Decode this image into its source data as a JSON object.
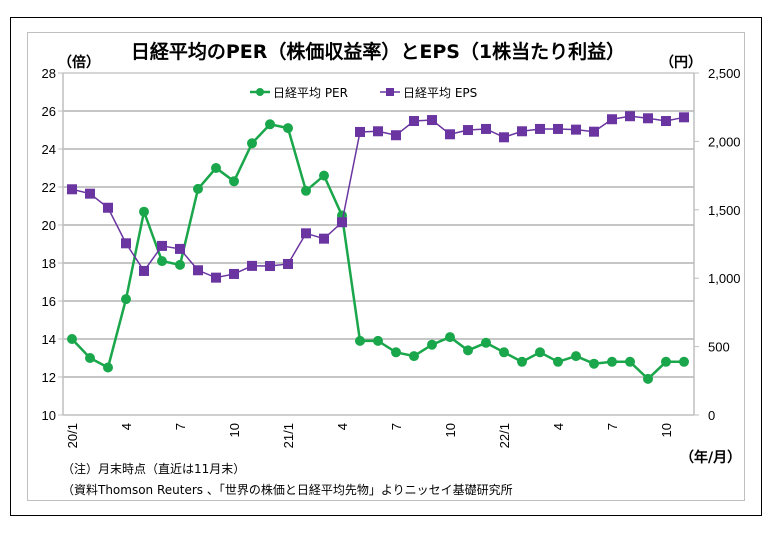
{
  "chart_data": {
    "type": "line",
    "title": "日経平均のPER（株価収益率）とEPS（1株当たり利益）",
    "left_unit": "（倍）",
    "right_unit": "（円）",
    "x_unit": "（年/月）",
    "x": [
      "20/1",
      "20/2",
      "20/3",
      "20/4",
      "20/5",
      "20/6",
      "20/7",
      "20/8",
      "20/9",
      "20/10",
      "20/11",
      "20/12",
      "21/1",
      "21/2",
      "21/3",
      "21/4",
      "21/5",
      "21/6",
      "21/7",
      "21/8",
      "21/9",
      "21/10",
      "21/11",
      "21/12",
      "22/1",
      "22/2",
      "22/3",
      "22/4",
      "22/5",
      "22/6",
      "22/7",
      "22/8",
      "22/9",
      "22/10",
      "22/11"
    ],
    "x_tick_labels": [
      {
        "index": 0,
        "label": "20/1"
      },
      {
        "index": 3,
        "label": "4"
      },
      {
        "index": 6,
        "label": "7"
      },
      {
        "index": 9,
        "label": "10"
      },
      {
        "index": 12,
        "label": "21/1"
      },
      {
        "index": 15,
        "label": "4"
      },
      {
        "index": 18,
        "label": "7"
      },
      {
        "index": 21,
        "label": "10"
      },
      {
        "index": 24,
        "label": "22/1"
      },
      {
        "index": 27,
        "label": "4"
      },
      {
        "index": 30,
        "label": "7"
      },
      {
        "index": 33,
        "label": "10"
      }
    ],
    "y_left": {
      "min": 10,
      "max": 28,
      "step": 2,
      "ticks": [
        "28",
        "26",
        "24",
        "22",
        "20",
        "18",
        "16",
        "14",
        "12",
        "10"
      ]
    },
    "y_right": {
      "min": 0,
      "max": 2500,
      "step": 500,
      "ticks": [
        "2,500",
        "2,000",
        "1,500",
        "1,000",
        "500",
        "0"
      ]
    },
    "grid": true,
    "legend_position": "top-center",
    "series": [
      {
        "name": "日経平均 PER",
        "axis": "left",
        "marker": "circle",
        "color": "#1aa64a",
        "values": [
          14.0,
          13.0,
          12.5,
          16.1,
          20.7,
          18.1,
          17.9,
          21.9,
          23.0,
          22.3,
          24.3,
          25.3,
          25.1,
          21.8,
          22.6,
          20.5,
          13.9,
          13.9,
          13.3,
          13.1,
          13.7,
          14.1,
          13.4,
          13.8,
          13.3,
          12.8,
          13.3,
          12.8,
          13.1,
          12.7,
          12.8,
          12.8,
          11.9,
          12.8,
          12.8
        ]
      },
      {
        "name": "日経平均 EPS",
        "axis": "right",
        "marker": "square",
        "color": "#6a35a0",
        "values": [
          1650,
          1618,
          1515,
          1255,
          1053,
          1236,
          1214,
          1058,
          1004,
          1031,
          1090,
          1089,
          1104,
          1328,
          1289,
          1409,
          2069,
          2074,
          2045,
          2149,
          2156,
          2052,
          2083,
          2091,
          2030,
          2074,
          2091,
          2091,
          2086,
          2071,
          2162,
          2184,
          2169,
          2149,
          2176
        ]
      }
    ],
    "notes": [
      "（注）月末時点（直近は11月末）",
      "（資料Thomson Reuters 、「世界の株価と日経平均先物」よりニッセイ基礎研究所"
    ]
  }
}
